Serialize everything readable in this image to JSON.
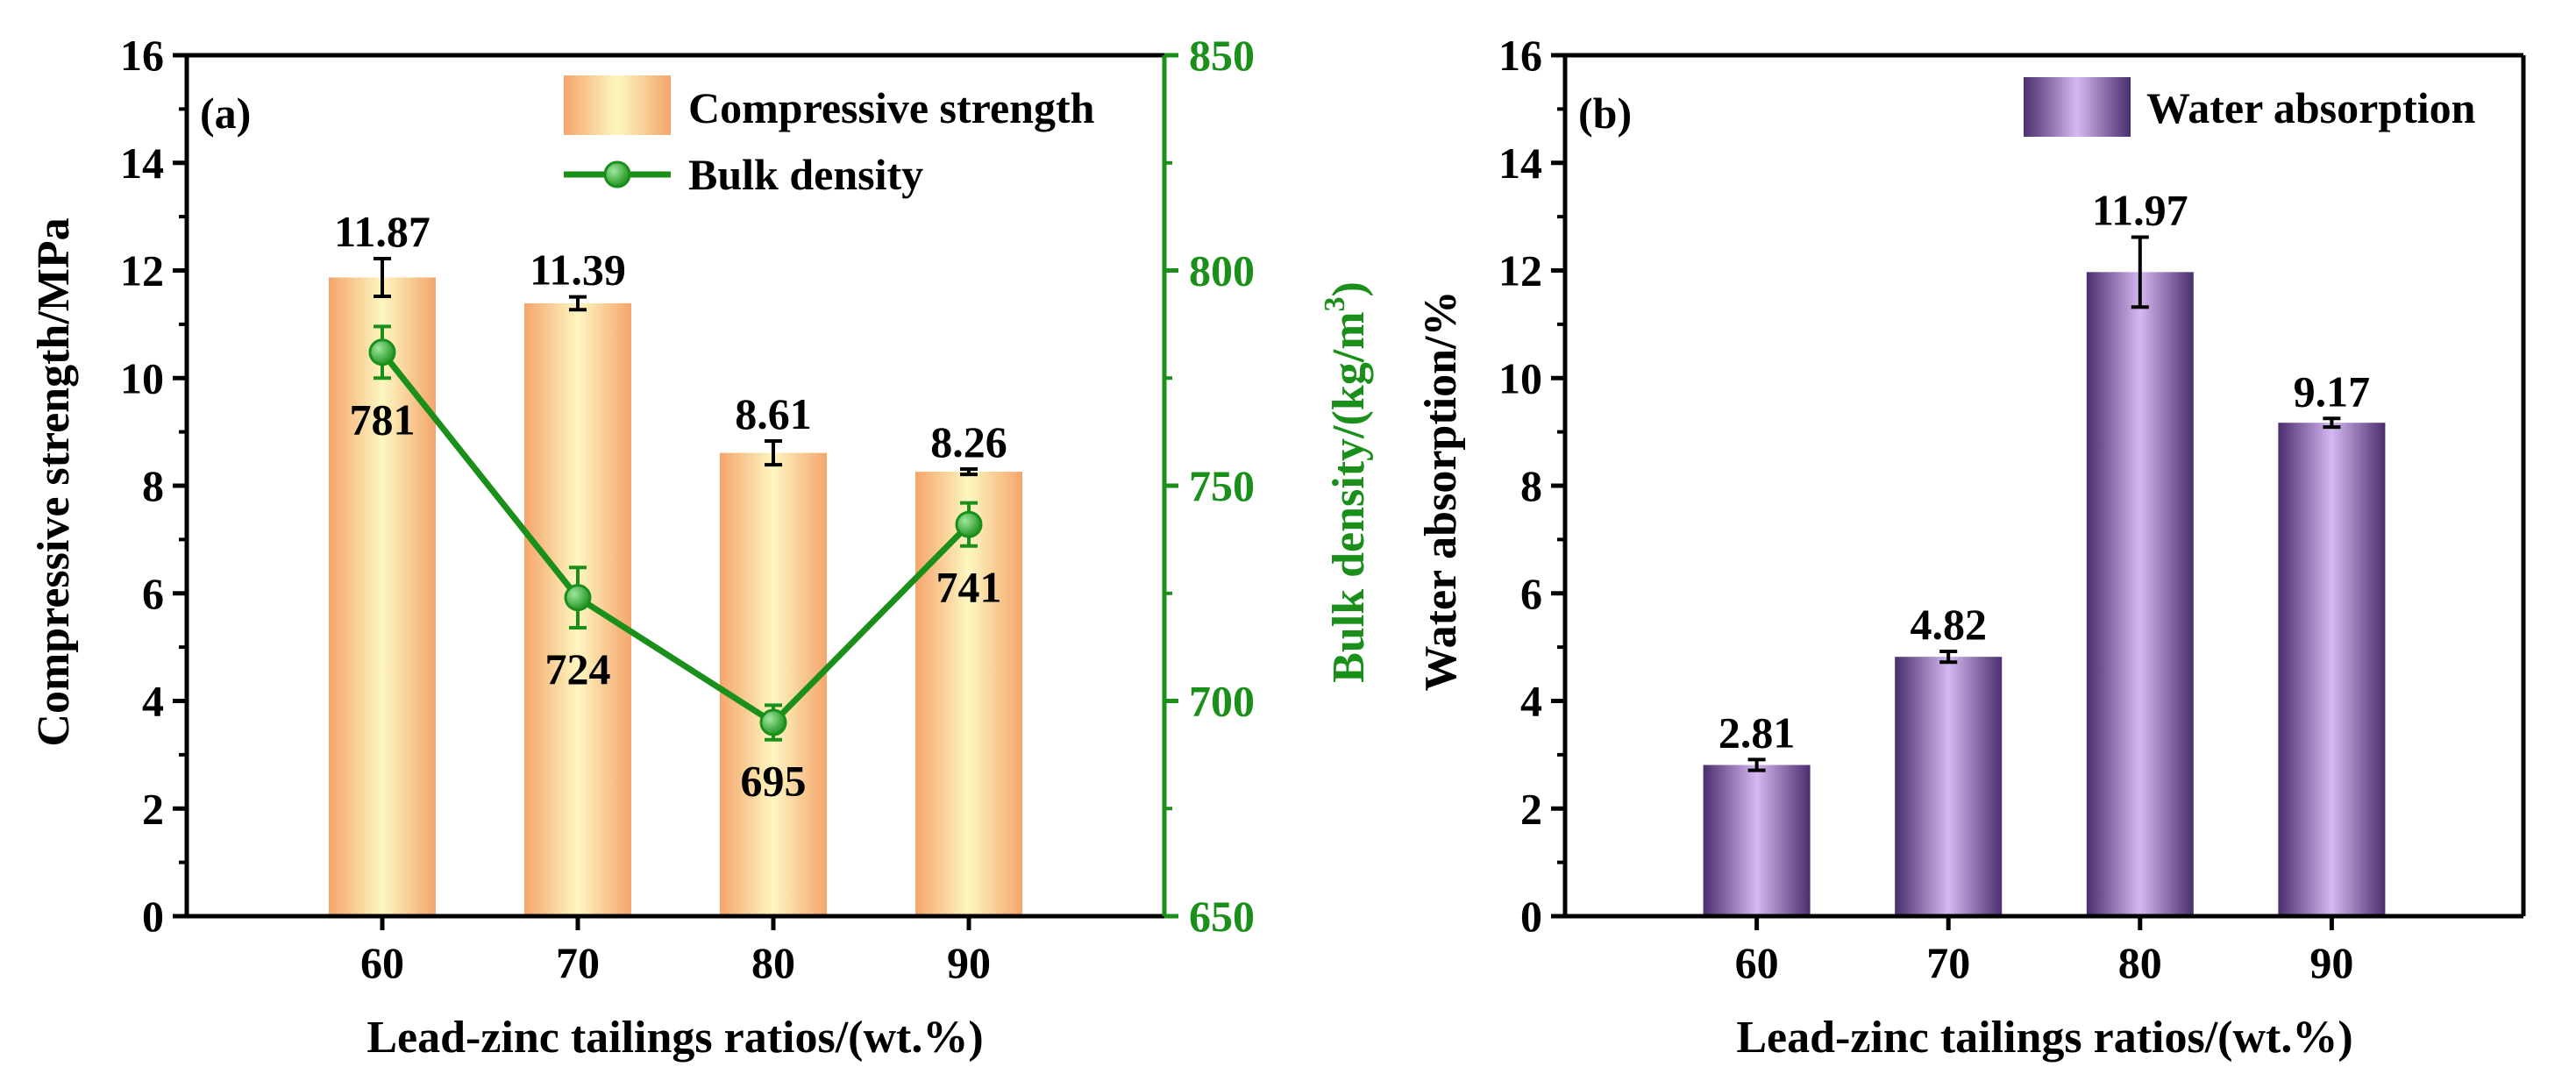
{
  "chart_data": [
    {
      "panel": "(a)",
      "type": "bar+line",
      "categories": [
        "60",
        "70",
        "80",
        "90"
      ],
      "xlabel": "Lead-zinc tailings ratios/(wt.%)",
      "ylabel": "Compressive strength/MPa",
      "y2label_main": "Bulk density/(kg/m",
      "y2label_sup": "3",
      "y2label_end": ")",
      "ylim": [
        0,
        16
      ],
      "yticks": [
        "0",
        "2",
        "4",
        "6",
        "8",
        "10",
        "12",
        "14",
        "16"
      ],
      "y2lim": [
        650,
        850
      ],
      "y2ticks": [
        "650",
        "700",
        "750",
        "800",
        "850"
      ],
      "series": [
        {
          "name": "Compressive strength",
          "kind": "bar",
          "values": [
            11.87,
            11.39,
            8.61,
            8.26
          ],
          "errors": [
            0.35,
            0.12,
            0.22,
            0.05
          ],
          "labels": [
            "11.87",
            "11.39",
            "8.61",
            "8.26"
          ],
          "color": "#f4a56c",
          "highlight": "#fdf6c0"
        },
        {
          "name": "Bulk density",
          "kind": "line",
          "axis": "right",
          "values": [
            781,
            724,
            695,
            741
          ],
          "errors": [
            6,
            7,
            4,
            5
          ],
          "labels": [
            "781",
            "724",
            "695",
            "741"
          ],
          "color": "#1a8f1a"
        }
      ],
      "legend_position": "top-right"
    },
    {
      "panel": "(b)",
      "type": "bar",
      "categories": [
        "60",
        "70",
        "80",
        "90"
      ],
      "xlabel": "Lead-zinc tailings ratios/(wt.%)",
      "ylabel": "Water absorption/%",
      "ylim": [
        0,
        16
      ],
      "yticks": [
        "0",
        "2",
        "4",
        "6",
        "8",
        "10",
        "12",
        "14",
        "16"
      ],
      "series": [
        {
          "name": "Water absorption",
          "kind": "bar",
          "values": [
            2.81,
            4.82,
            11.97,
            9.17
          ],
          "errors": [
            0.1,
            0.1,
            0.65,
            0.08
          ],
          "labels": [
            "2.81",
            "4.82",
            "11.97",
            "9.17"
          ],
          "color": "#4a2e6e",
          "highlight": "#d4b8f0"
        }
      ],
      "legend_position": "top-right"
    }
  ]
}
